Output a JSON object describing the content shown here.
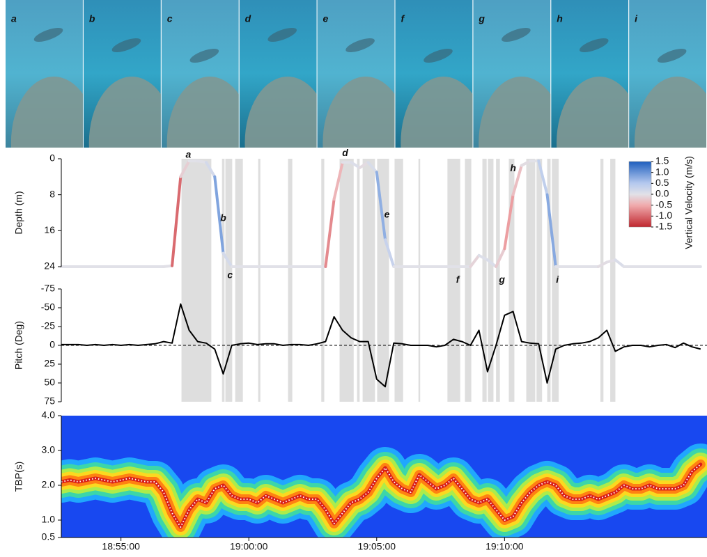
{
  "photo_labels": [
    "a",
    "b",
    "c",
    "d",
    "e",
    "f",
    "g",
    "h",
    "i"
  ],
  "shaded_intervals": [
    [
      "18:57:22",
      "18:58:32"
    ],
    [
      "18:58:57",
      "18:59:03"
    ],
    [
      "18:59:05",
      "18:59:21"
    ],
    [
      "18:59:28",
      "18:59:46"
    ],
    [
      "19:00:22",
      "19:00:27"
    ],
    [
      "19:01:32",
      "19:01:42"
    ],
    [
      "19:02:50",
      "19:02:57"
    ],
    [
      "19:03:33",
      "19:04:06"
    ],
    [
      "19:04:14",
      "19:04:20"
    ],
    [
      "19:04:27",
      "19:04:56"
    ],
    [
      "19:05:01",
      "19:05:29"
    ],
    [
      "19:05:42",
      "19:06:02"
    ],
    [
      "19:06:38",
      "19:06:42"
    ],
    [
      "19:07:46",
      "19:08:16"
    ],
    [
      "19:08:27",
      "19:08:42"
    ],
    [
      "19:09:08",
      "19:09:18"
    ],
    [
      "19:09:21",
      "19:09:34"
    ],
    [
      "19:09:40",
      "19:09:49"
    ],
    [
      "19:10:10",
      "19:10:23"
    ],
    [
      "19:10:51",
      "19:11:12"
    ],
    [
      "19:11:15",
      "19:11:28"
    ],
    [
      "19:11:40",
      "19:11:48"
    ],
    [
      "19:11:51",
      "19:12:07"
    ],
    [
      "19:13:45",
      "19:13:52"
    ],
    [
      "19:14:08",
      "19:14:20"
    ]
  ],
  "chart_data": [
    {
      "type": "line",
      "ylabel": "Depth (m)",
      "x": [
        "18:52:40",
        "18:53:00",
        "18:53:20",
        "18:53:40",
        "18:54:00",
        "18:54:20",
        "18:54:40",
        "18:55:00",
        "18:55:20",
        "18:55:40",
        "18:56:00",
        "18:56:20",
        "18:56:40",
        "18:57:00",
        "18:57:20",
        "18:57:40",
        "18:58:00",
        "18:58:20",
        "18:58:40",
        "18:59:00",
        "18:59:20",
        "18:59:40",
        "19:00:00",
        "19:00:20",
        "19:00:40",
        "19:01:00",
        "19:01:20",
        "19:01:40",
        "19:02:00",
        "19:02:20",
        "19:02:40",
        "19:03:00",
        "19:03:20",
        "19:03:40",
        "19:04:00",
        "19:04:20",
        "19:04:40",
        "19:05:00",
        "19:05:20",
        "19:05:40",
        "19:06:00",
        "19:06:20",
        "19:06:40",
        "19:07:00",
        "19:07:20",
        "19:07:40",
        "19:08:00",
        "19:08:20",
        "19:08:40",
        "19:09:00",
        "19:09:20",
        "19:09:40",
        "19:10:00",
        "19:10:20",
        "19:10:40",
        "19:11:00",
        "19:11:20",
        "19:11:40",
        "19:12:00",
        "19:12:20",
        "19:12:40",
        "19:13:00",
        "19:13:20",
        "19:13:40",
        "19:14:00",
        "19:14:20",
        "19:14:40",
        "19:15:00",
        "19:15:20",
        "19:15:40",
        "19:16:00",
        "19:16:20",
        "19:16:40",
        "19:17:00",
        "19:17:20",
        "19:17:40"
      ],
      "values": [
        24,
        24,
        24,
        24,
        24,
        24,
        24,
        24,
        24,
        24,
        24,
        24,
        24,
        23.8,
        4,
        0.5,
        0.5,
        0.8,
        4,
        21,
        24,
        24,
        24,
        24,
        24,
        24,
        24,
        24,
        24,
        24,
        24,
        24,
        9,
        0.8,
        0.8,
        2,
        0.8,
        3,
        18,
        24,
        24,
        24,
        24,
        24,
        24,
        24,
        24,
        24,
        24,
        21.5,
        22.5,
        24,
        20,
        8,
        1.5,
        0.5,
        0.5,
        8,
        24,
        24,
        24,
        24,
        24,
        24,
        23,
        22.5,
        24,
        24,
        24,
        24,
        24,
        24,
        24,
        24,
        24,
        24
      ],
      "xlim": [
        "18:52:40",
        "19:17:55"
      ],
      "ylim": [
        24,
        0
      ],
      "yticks": [
        0,
        8,
        16,
        24
      ],
      "colorbar": {
        "label": "Vertical Velocity (m/s)",
        "lim": [
          -1.5,
          1.5
        ],
        "ticks": [
          1.5,
          {
            "value": 1,
            "label": "1.0"
          },
          0.5,
          {
            "value": 0,
            "label": "0.0"
          },
          -0.5,
          {
            "value": -1,
            "label": "-1.0"
          },
          -1.5
        ]
      },
      "annotations": [
        {
          "text": "a",
          "x": "18:57:38",
          "y": -0.8
        },
        {
          "text": "b",
          "x": "18:59:00",
          "y": 13.3
        },
        {
          "text": "c",
          "x": "18:59:16",
          "y": 26
        },
        {
          "text": "d",
          "x": "19:03:46",
          "y": -1.2
        },
        {
          "text": "e",
          "x": "19:05:24",
          "y": 12.5
        },
        {
          "text": "f",
          "x": "19:08:10",
          "y": 27
        },
        {
          "text": "g",
          "x": "19:09:54",
          "y": 27
        },
        {
          "text": "h",
          "x": "19:10:20",
          "y": 2.2
        },
        {
          "text": "i",
          "x": "19:12:04",
          "y": 27
        }
      ]
    },
    {
      "type": "line",
      "ylabel": "Pitch (Deg)",
      "color": "#000000",
      "zero_line": true,
      "x": [
        "18:52:40",
        "18:53:00",
        "18:53:20",
        "18:53:40",
        "18:54:00",
        "18:54:20",
        "18:54:40",
        "18:55:00",
        "18:55:20",
        "18:55:40",
        "18:56:00",
        "18:56:20",
        "18:56:40",
        "18:57:00",
        "18:57:20",
        "18:57:40",
        "18:58:00",
        "18:58:20",
        "18:58:40",
        "18:59:00",
        "18:59:20",
        "18:59:40",
        "19:00:00",
        "19:00:20",
        "19:00:40",
        "19:01:00",
        "19:01:20",
        "19:01:40",
        "19:02:00",
        "19:02:20",
        "19:02:40",
        "19:03:00",
        "19:03:20",
        "19:03:40",
        "19:04:00",
        "19:04:20",
        "19:04:40",
        "19:05:00",
        "19:05:20",
        "19:05:40",
        "19:06:00",
        "19:06:20",
        "19:06:40",
        "19:07:00",
        "19:07:20",
        "19:07:40",
        "19:08:00",
        "19:08:20",
        "19:08:40",
        "19:09:00",
        "19:09:20",
        "19:09:40",
        "19:10:00",
        "19:10:20",
        "19:10:40",
        "19:11:00",
        "19:11:20",
        "19:11:40",
        "19:12:00",
        "19:12:20",
        "19:12:40",
        "19:13:00",
        "19:13:20",
        "19:13:40",
        "19:14:00",
        "19:14:20",
        "19:14:40",
        "19:15:00",
        "19:15:20",
        "19:15:40",
        "19:16:00",
        "19:16:20",
        "19:16:40",
        "19:17:00",
        "19:17:20",
        "19:17:40"
      ],
      "values": [
        -1,
        -1,
        -1,
        0,
        -1,
        0,
        -1,
        0,
        -1,
        0,
        -1,
        -2,
        -5,
        -3,
        -55,
        -20,
        -5,
        -3,
        5,
        38,
        0,
        -2,
        -3,
        -1,
        -2,
        -2,
        0,
        -1,
        -1,
        0,
        -2,
        -5,
        -38,
        -20,
        -10,
        -5,
        -5,
        45,
        55,
        -3,
        -2,
        0,
        0,
        0,
        2,
        0,
        -8,
        -5,
        0,
        -20,
        35,
        0,
        -40,
        -45,
        -5,
        -3,
        -2,
        50,
        5,
        0,
        -2,
        -3,
        -5,
        -10,
        -20,
        8,
        2,
        0,
        0,
        2,
        0,
        -1,
        3,
        -3,
        2,
        5
      ],
      "xlim": [
        "18:52:40",
        "19:17:55"
      ],
      "ylim": [
        75,
        -75
      ],
      "yticks": [
        -75,
        -50,
        -25,
        0,
        25,
        50,
        75
      ]
    },
    {
      "type": "spectrogram",
      "ylabel": "TBP(s)",
      "x": [
        "18:52:40",
        "18:53:00",
        "18:53:20",
        "18:53:40",
        "18:54:00",
        "18:54:20",
        "18:54:40",
        "18:55:00",
        "18:55:20",
        "18:55:40",
        "18:56:00",
        "18:56:20",
        "18:56:40",
        "18:57:00",
        "18:57:20",
        "18:57:40",
        "18:58:00",
        "18:58:20",
        "18:58:40",
        "18:59:00",
        "18:59:20",
        "18:59:40",
        "19:00:00",
        "19:00:20",
        "19:00:40",
        "19:01:00",
        "19:01:20",
        "19:01:40",
        "19:02:00",
        "19:02:20",
        "19:02:40",
        "19:03:00",
        "19:03:20",
        "19:03:40",
        "19:04:00",
        "19:04:20",
        "19:04:40",
        "19:05:00",
        "19:05:20",
        "19:05:40",
        "19:06:00",
        "19:06:20",
        "19:06:40",
        "19:07:00",
        "19:07:20",
        "19:07:40",
        "19:08:00",
        "19:08:20",
        "19:08:40",
        "19:09:00",
        "19:09:20",
        "19:09:40",
        "19:10:00",
        "19:10:20",
        "19:10:40",
        "19:11:00",
        "19:11:20",
        "19:11:40",
        "19:12:00",
        "19:12:20",
        "19:12:40",
        "19:13:00",
        "19:13:20",
        "19:13:40",
        "19:14:00",
        "19:14:20",
        "19:14:40",
        "19:15:00",
        "19:15:20",
        "19:15:40",
        "19:16:00",
        "19:16:20",
        "19:16:40",
        "19:17:00",
        "19:17:20",
        "19:17:40"
      ],
      "values": [
        2.1,
        2.15,
        2.1,
        2.15,
        2.2,
        2.15,
        2.1,
        2.15,
        2.2,
        2.15,
        2.1,
        2.1,
        1.8,
        1.2,
        0.8,
        1.3,
        1.6,
        1.5,
        1.9,
        2.0,
        1.7,
        1.6,
        1.6,
        1.5,
        1.7,
        1.6,
        1.5,
        1.6,
        1.7,
        1.6,
        1.6,
        1.3,
        0.9,
        1.2,
        1.5,
        1.6,
        1.8,
        2.2,
        2.5,
        2.1,
        1.9,
        1.8,
        2.3,
        2.1,
        1.9,
        2.0,
        2.2,
        1.9,
        1.6,
        1.5,
        1.6,
        1.3,
        1.0,
        1.1,
        1.5,
        1.8,
        2.0,
        2.1,
        2.0,
        1.7,
        1.6,
        1.6,
        1.7,
        1.6,
        1.7,
        1.8,
        2.0,
        1.9,
        1.9,
        2.0,
        1.9,
        1.9,
        1.9,
        2.0,
        2.4,
        2.6
      ],
      "xlim": [
        "18:52:40",
        "19:17:55"
      ],
      "ylim": [
        0.5,
        4.0
      ],
      "yticks": [
        0.5,
        {
          "value": 1,
          "label": "1.0"
        },
        {
          "value": 2,
          "label": "2.0"
        },
        {
          "value": 3,
          "label": "3.0"
        },
        {
          "value": 4,
          "label": "4.0"
        }
      ],
      "xticks": [
        "18:55:00",
        "19:00:00",
        "19:05:00",
        "19:10:00"
      ]
    }
  ]
}
